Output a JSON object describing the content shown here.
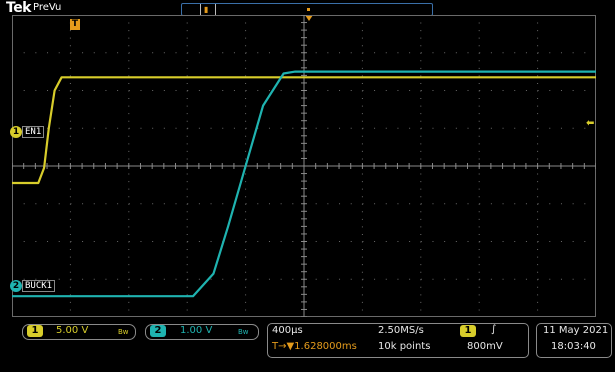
{
  "header": {
    "brand": "Tek",
    "mode": "PreVu"
  },
  "colors": {
    "ch1": "#d8cd2b",
    "ch2": "#1fb3b0",
    "trigger": "#e49b1c",
    "grid": "#6a6a6a"
  },
  "markers": {
    "trigger_t": "T",
    "ch1_num": "1",
    "ch1_label": "EN1",
    "ch2_num": "2",
    "ch2_label": "BUCK1",
    "trig_level_glyph": "⬅"
  },
  "chart_data": {
    "type": "line",
    "title": "",
    "xlabel": "",
    "ylabel": "",
    "x_divisions": 10,
    "y_divisions": 8,
    "grid": true,
    "series": [
      {
        "name": "EN1",
        "color": "#d8cd2b",
        "x_div": [
          0,
          0.45,
          0.55,
          0.63,
          0.73,
          0.85,
          10
        ],
        "y_div": [
          -0.45,
          -0.45,
          -0.05,
          1.0,
          2.0,
          2.35,
          2.35
        ]
      },
      {
        "name": "BUCK1",
        "color": "#1fb3b0",
        "x_div": [
          0,
          3.1,
          3.45,
          3.7,
          4.0,
          4.3,
          4.65,
          4.85,
          10
        ],
        "y_div": [
          -3.45,
          -3.45,
          -2.85,
          -1.6,
          0.0,
          1.6,
          2.45,
          2.5,
          2.5
        ]
      }
    ]
  },
  "bottom_bar": {
    "ch1_num": "1",
    "ch1_scale": "5.00 V",
    "ch1_bw": "Bw",
    "ch2_num": "2",
    "ch2_scale": "1.00 V",
    "ch2_bw": "Bw",
    "timebase": "400µs",
    "sample_rate": "2.50MS/s",
    "trig_pos": "T→▼1.628000ms",
    "record_length": "10k points",
    "trig_source": "1",
    "trig_slope": "∫",
    "trig_level": "800mV",
    "date": "11 May 2021",
    "time": "18:03:40"
  }
}
